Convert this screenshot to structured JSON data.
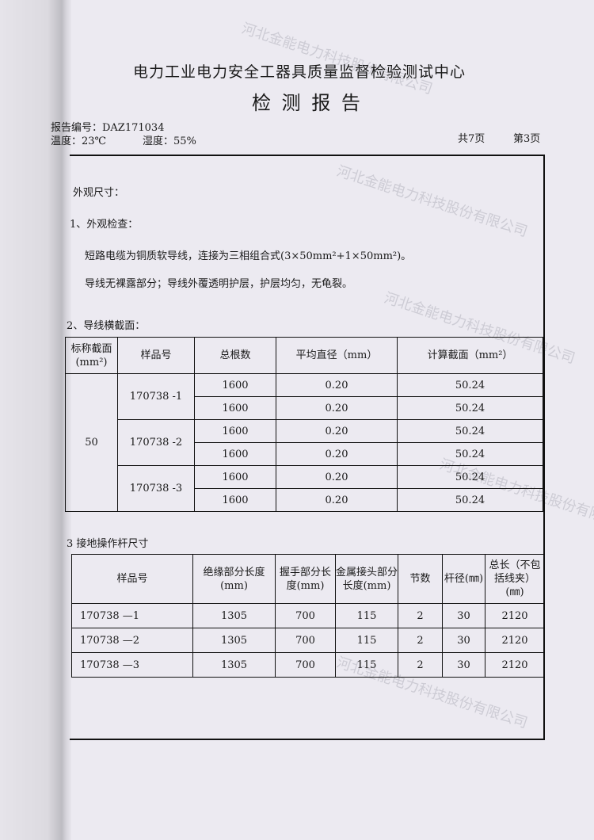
{
  "header": {
    "institution": "电力工业电力安全工器具质量监督检验测试中心",
    "title": "检 测 报 告",
    "report_no": "报告编号：DAZ171034",
    "temperature": "温度：23℃",
    "humidity": "湿度：55%",
    "total_pages": "共7页",
    "page": "第3页"
  },
  "sections": {
    "s1": "外观尺寸：",
    "s1_1": "1、外观检查：",
    "p1": "短路电缆为铜质软导线，连接为三相组合式(3×50mm²+1×50mm²)。",
    "p2": "导线无裸露部分；导线外覆透明护层，护层均匀，无龟裂。",
    "s2": "2、导线横截面：",
    "s3": "3  接地操作杆尺寸"
  },
  "table1": {
    "headers": [
      "标称截面(mm²)",
      "样品号",
      "总根数",
      "平均直径（mm）",
      "计算截面（mm²）"
    ],
    "nominal": "50",
    "samples": [
      "170738 -1",
      "170738 -2",
      "170738 -3"
    ],
    "rows": [
      [
        "1600",
        "0.20",
        "50.24"
      ],
      [
        "1600",
        "0.20",
        "50.24"
      ],
      [
        "1600",
        "0.20",
        "50.24"
      ],
      [
        "1600",
        "0.20",
        "50.24"
      ],
      [
        "1600",
        "0.20",
        "50.24"
      ],
      [
        "1600",
        "0.20",
        "50.24"
      ]
    ]
  },
  "table2": {
    "headers": [
      "样品号",
      "绝缘部分长度(mm)",
      "握手部分长度(mm)",
      "金属接头部分长度(mm)",
      "节数",
      "杆径(㎜)",
      "总长（不包括线夹）(㎜)"
    ],
    "rows": [
      [
        "170738 —1",
        "1305",
        "700",
        "115",
        "2",
        "30",
        "2120"
      ],
      [
        "170738 —2",
        "1305",
        "700",
        "115",
        "2",
        "30",
        "2120"
      ],
      [
        "170738 —3",
        "1305",
        "700",
        "115",
        "2",
        "30",
        "2120"
      ]
    ]
  },
  "watermark": "河北金能电力科技股份有限公司"
}
